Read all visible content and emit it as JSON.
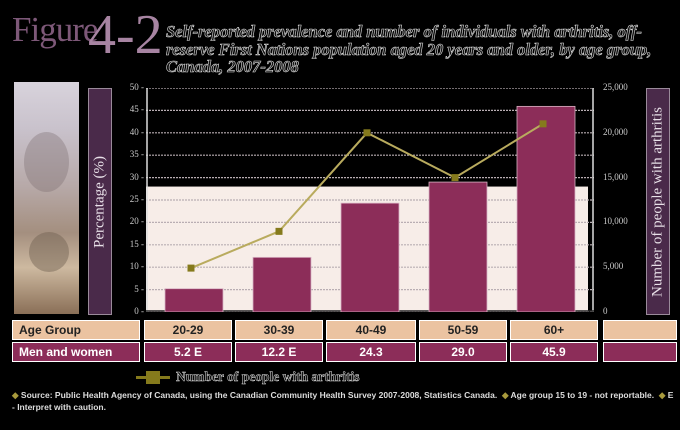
{
  "header": {
    "figure_word": "Figure",
    "figure_number": "4-2",
    "title": "Self-reported prevalence and number of individuals with arthritis, off-reserve First Nations population aged 20 years and older, by age group, Canada, 2007-2008"
  },
  "axes": {
    "left_label": "Percentage (%)",
    "right_label": "Number of people with arthritis",
    "left_ticks": [
      "0",
      "5",
      "10",
      "15",
      "20",
      "25",
      "30",
      "35",
      "40",
      "45",
      "50"
    ],
    "right_ticks": [
      "0",
      "5,000",
      "10,000",
      "15,000",
      "20,000",
      "25,000"
    ]
  },
  "table": {
    "row1_label": "Age Group",
    "row2_label": "Men and women",
    "age_groups": [
      "20-29",
      "30-39",
      "40-49",
      "50-59",
      "60+"
    ],
    "values": [
      "5.2 E",
      "12.2 E",
      "24.3",
      "29.0",
      "45.9"
    ]
  },
  "legend": {
    "line_label": "Number of people with arthritis"
  },
  "notes": {
    "source": "Source: Public Health Agency of Canada, using the Canadian Community Health Survey 2007-2008, Statistics Canada.",
    "age_note": "Age group 15 to 19 - not reportable.",
    "e_note": "E - Interpret with caution."
  },
  "colors": {
    "bar": "#8c2d59",
    "line": "#857a1c",
    "label_box": "#4a2a4a",
    "age_row": "#ebc3a1",
    "plot_bg_band": "#f7ede8"
  },
  "chart_data": {
    "type": "bar",
    "title": "Self-reported prevalence and number of individuals with arthritis, off-reserve First Nations population aged 20 years and older, by age group, Canada, 2007-2008",
    "categories": [
      "20-29",
      "30-39",
      "40-49",
      "50-59",
      "60+"
    ],
    "series": [
      {
        "name": "Percentage (%)",
        "type": "bar",
        "axis": "left",
        "values": [
          5.2,
          12.2,
          24.3,
          29.0,
          45.9
        ]
      },
      {
        "name": "Number of people with arthritis",
        "type": "line",
        "axis": "right",
        "values": [
          4900,
          9000,
          20000,
          15000,
          21000
        ]
      }
    ],
    "xlabel": "Age Group",
    "ylabel": "Percentage (%)",
    "y2label": "Number of people with arthritis",
    "ylim": [
      0,
      50
    ],
    "y2lim": [
      0,
      25000
    ],
    "grid": true,
    "legend_position": "bottom"
  }
}
